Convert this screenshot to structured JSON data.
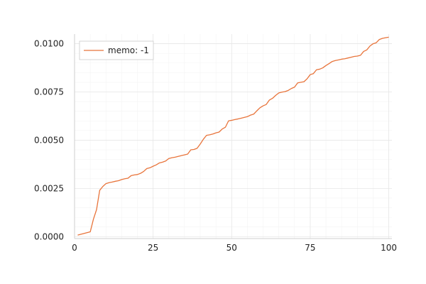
{
  "chart_data": {
    "type": "line",
    "title": "",
    "xlabel": "",
    "ylabel": "",
    "xlim": [
      0,
      101
    ],
    "ylim": [
      -0.0001,
      0.0105
    ],
    "x_ticks": [
      0,
      25,
      50,
      75,
      100
    ],
    "x_tick_labels": [
      "0",
      "25",
      "50",
      "75",
      "100"
    ],
    "y_ticks": [
      0.0,
      0.0025,
      0.005,
      0.0075,
      0.01
    ],
    "y_tick_labels": [
      "0.0000",
      "0.0025",
      "0.0050",
      "0.0075",
      "0.0100"
    ],
    "grid": true,
    "legend_position": "top-left",
    "series": [
      {
        "name": "memo: -1",
        "color": "#e8743b",
        "x": [
          1,
          5,
          6,
          7,
          8,
          9,
          10,
          11,
          12,
          13,
          14,
          15,
          16,
          17,
          18,
          19,
          20,
          21,
          22,
          23,
          24,
          25,
          26,
          27,
          28,
          29,
          30,
          31,
          32,
          33,
          34,
          35,
          36,
          37,
          38,
          39,
          40,
          41,
          42,
          43,
          44,
          45,
          46,
          47,
          48,
          49,
          50,
          51,
          52,
          53,
          54,
          55,
          56,
          57,
          58,
          59,
          60,
          61,
          62,
          63,
          64,
          65,
          66,
          67,
          68,
          69,
          70,
          71,
          72,
          73,
          74,
          75,
          76,
          77,
          78,
          79,
          80,
          81,
          82,
          83,
          84,
          85,
          86,
          87,
          88,
          89,
          90,
          91,
          92,
          93,
          94,
          95,
          96,
          97,
          98,
          99,
          100
        ],
        "y": [
          8e-05,
          0.00025,
          0.0009,
          0.0014,
          0.0024,
          0.0026,
          0.00275,
          0.0028,
          0.00283,
          0.00287,
          0.0029,
          0.00296,
          0.003,
          0.00303,
          0.00316,
          0.0032,
          0.00322,
          0.00328,
          0.00338,
          0.00353,
          0.00357,
          0.00365,
          0.00372,
          0.00382,
          0.00386,
          0.00392,
          0.00405,
          0.00409,
          0.00412,
          0.00416,
          0.0042,
          0.00424,
          0.00428,
          0.0045,
          0.00452,
          0.00458,
          0.0048,
          0.00505,
          0.00525,
          0.00528,
          0.00532,
          0.00538,
          0.00542,
          0.00558,
          0.00567,
          0.006,
          0.00603,
          0.00607,
          0.0061,
          0.00614,
          0.00618,
          0.00622,
          0.0063,
          0.00635,
          0.00652,
          0.00668,
          0.00678,
          0.00685,
          0.00708,
          0.00717,
          0.00732,
          0.00745,
          0.00749,
          0.00752,
          0.00758,
          0.00768,
          0.00775,
          0.00797,
          0.008,
          0.00803,
          0.00818,
          0.0084,
          0.00845,
          0.00865,
          0.00868,
          0.00875,
          0.00887,
          0.00897,
          0.00908,
          0.00913,
          0.00916,
          0.0092,
          0.00922,
          0.00926,
          0.0093,
          0.00934,
          0.00936,
          0.0094,
          0.0096,
          0.00968,
          0.00988,
          0.01,
          0.01005,
          0.01022,
          0.01028,
          0.01031,
          0.01034
        ]
      }
    ]
  }
}
